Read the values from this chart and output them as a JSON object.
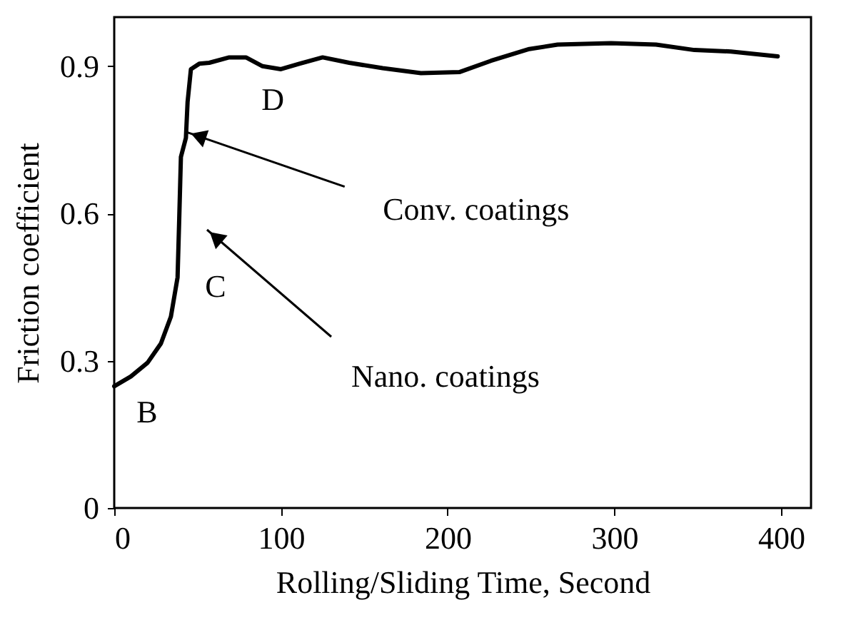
{
  "chart_data": {
    "type": "line",
    "xlabel": "Rolling/Sliding Time, Second",
    "ylabel": "Friction coefficient",
    "xlim": [
      0,
      418
    ],
    "xticks": [
      0,
      100,
      200,
      300,
      400
    ],
    "ylim": [
      0,
      1.0
    ],
    "yticks": [
      0,
      0.3,
      0.6,
      0.9
    ],
    "grid": false,
    "marker": "none",
    "line_style": "solid",
    "series": [
      {
        "color": "#000000",
        "x": [
          0,
          10,
          20,
          28,
          34,
          38,
          39,
          40,
          43,
          44,
          46,
          51,
          57,
          69,
          79,
          89,
          100,
          111,
          125,
          141,
          161,
          184,
          207,
          226,
          249,
          266,
          298,
          325,
          348,
          370,
          398
        ],
        "values": [
          0.248,
          0.268,
          0.296,
          0.335,
          0.39,
          0.47,
          0.59,
          0.715,
          0.754,
          0.827,
          0.894,
          0.905,
          0.907,
          0.918,
          0.918,
          0.9,
          0.894,
          0.905,
          0.918,
          0.907,
          0.896,
          0.886,
          0.888,
          0.911,
          0.935,
          0.944,
          0.947,
          0.944,
          0.933,
          0.93,
          0.92
        ]
      }
    ],
    "annotations": [
      "B",
      "C",
      "D",
      {
        "text": "Conv. coatings",
        "x": 44,
        "y": 0.765
      },
      "Nano. coatings"
    ]
  }
}
